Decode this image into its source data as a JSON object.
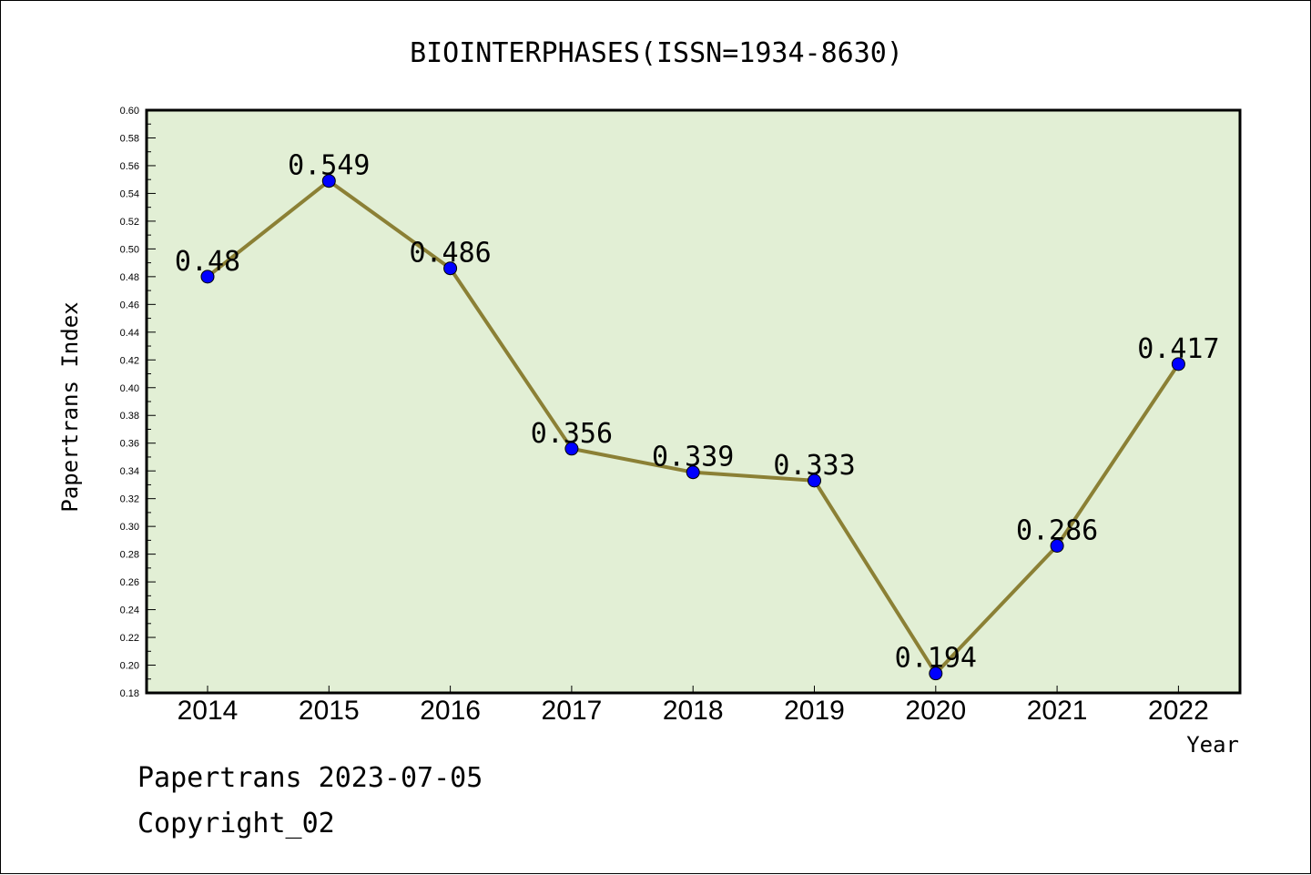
{
  "footer": {
    "date_line": "Papertrans 2023-07-05",
    "copyright_line": "Copyright_02"
  },
  "chart_data": {
    "type": "line",
    "title": "BIOINTERPHASES(ISSN=1934-8630)",
    "xlabel": "Year",
    "ylabel": "Papertrans Index",
    "categories": [
      "2014",
      "2015",
      "2016",
      "2017",
      "2018",
      "2019",
      "2020",
      "2021",
      "2022"
    ],
    "values": [
      0.48,
      0.549,
      0.486,
      0.356,
      0.339,
      0.333,
      0.194,
      0.286,
      0.417
    ],
    "data_labels": [
      "0.48",
      "0.549",
      "0.486",
      "0.356",
      "0.339",
      "0.333",
      "0.194",
      "0.286",
      "0.417"
    ],
    "ylim": [
      0.18,
      0.6
    ],
    "yticks": [
      "0.18",
      "0.20",
      "0.22",
      "0.24",
      "0.26",
      "0.28",
      "0.30",
      "0.32",
      "0.34",
      "0.36",
      "0.38",
      "0.40",
      "0.42",
      "0.44",
      "0.46",
      "0.48",
      "0.50",
      "0.52",
      "0.54",
      "0.56",
      "0.58",
      "0.60"
    ],
    "grid": false,
    "colors": {
      "plot_background": "#e2efd5",
      "line": "#8b8035",
      "marker": "#0000ff"
    }
  }
}
